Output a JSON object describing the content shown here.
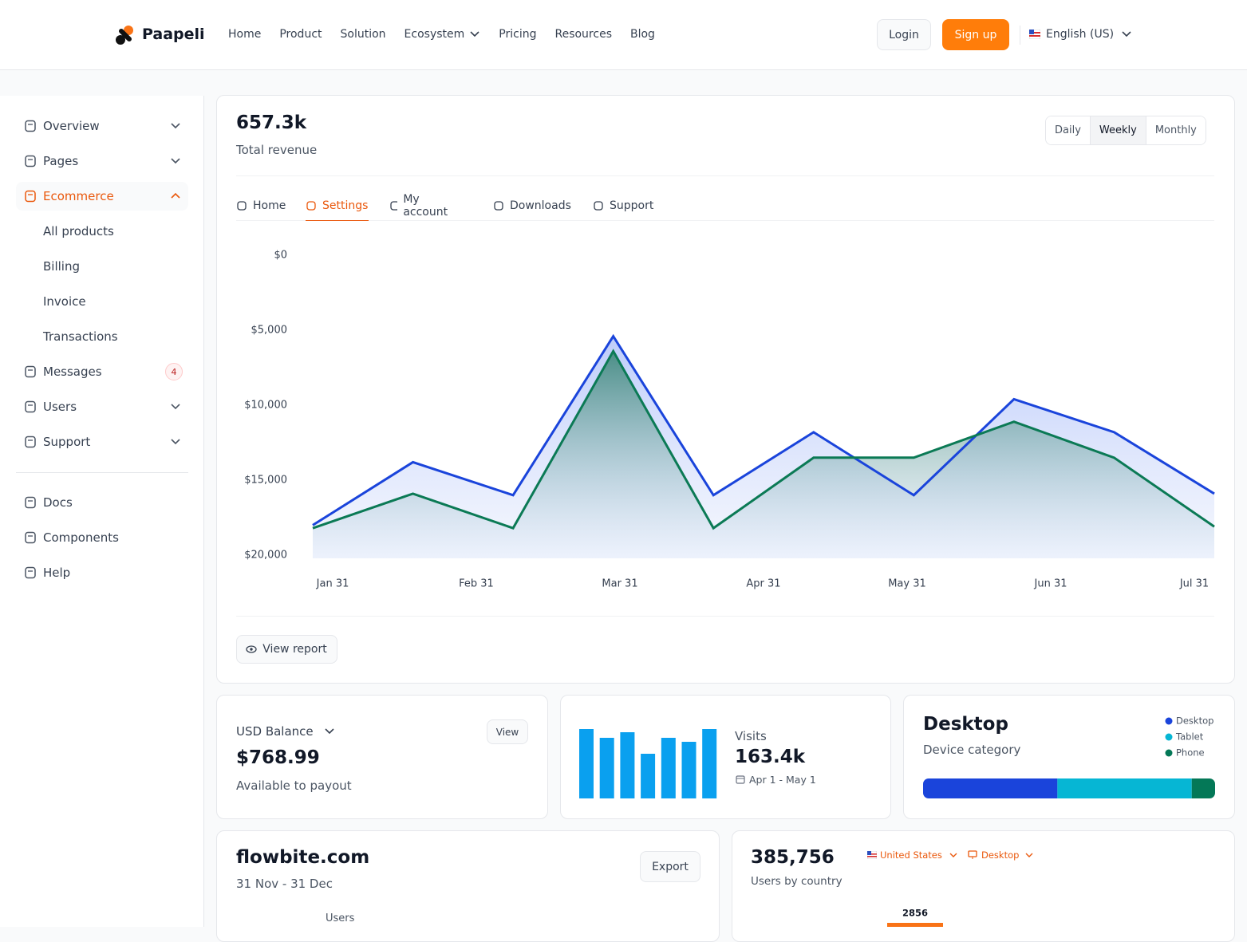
{
  "nav": {
    "brand": "Paapeli",
    "links": [
      "Home",
      "Product",
      "Solution",
      "Ecosystem",
      "Pricing",
      "Resources",
      "Blog"
    ],
    "login": "Login",
    "signup": "Sign up",
    "language": "English (US)"
  },
  "sidebar": {
    "items": [
      {
        "label": "Overview"
      },
      {
        "label": "Pages"
      },
      {
        "label": "Ecommerce",
        "children": [
          "All products",
          "Billing",
          "Invoice",
          "Transactions"
        ]
      },
      {
        "label": "Messages",
        "badge": 4
      },
      {
        "label": "Users"
      },
      {
        "label": "Support"
      }
    ],
    "footer": [
      "Docs",
      "Components",
      "Help"
    ]
  },
  "revenue": {
    "value": "657.3k",
    "label": "Total revenue",
    "periods": [
      "Daily",
      "Weekly",
      "Monthly"
    ],
    "tabs": [
      "Home",
      "Settings",
      "My account",
      "Downloads",
      "Support"
    ],
    "chart": {
      "type": "area",
      "x_labels": [
        "Jan 31",
        "Feb 31",
        "Mar 31",
        "Apr 31",
        "May 31",
        "Jun 31",
        "Jul 31"
      ],
      "ylim": [
        20000,
        0
      ],
      "yticks": [
        {
          "value": 0,
          "label": "$0"
        },
        {
          "value": 5000,
          "label": "$5,000"
        },
        {
          "value": 10000,
          "label": "$10,000"
        },
        {
          "value": 15000,
          "label": "$15,000"
        },
        {
          "value": 20000,
          "label": "$20,000"
        }
      ],
      "series": [
        {
          "color": "#1a44db",
          "values": [
            18000,
            13800,
            16000,
            5400,
            16000,
            11800,
            16000,
            9600,
            11800,
            15900
          ]
        },
        {
          "color": "#0b7a55",
          "values": [
            18200,
            15900,
            18200,
            6400,
            18200,
            13500,
            13500,
            11100,
            13500,
            18100
          ]
        }
      ]
    },
    "button": "View report"
  },
  "balance": {
    "title": "USD Balance",
    "button": "View",
    "amount": "$768.99",
    "caption": "Available to payout"
  },
  "visits": {
    "chart": {
      "type": "bar",
      "values": [
        87,
        76,
        83,
        56,
        76,
        71,
        87
      ],
      "color": "#0aa0ef"
    },
    "title": "Visits",
    "value": "163.4k",
    "range": "Apr 1 - May 1"
  },
  "device": {
    "title": "Desktop",
    "subtitle": "Device category",
    "chart": {
      "type": "stacked-bar",
      "series": [
        {
          "name": "Desktop",
          "color": "#1a44db",
          "values": [
            46
          ]
        },
        {
          "name": "Tablet",
          "color": "#06b6d4",
          "values": [
            46
          ]
        },
        {
          "name": "Phone",
          "color": "#047857",
          "values": [
            8
          ]
        }
      ]
    }
  },
  "site": {
    "title": "flowbite.com",
    "range": "31 Nov - 31 Dec",
    "button": "Export",
    "legend": "Users"
  },
  "country": {
    "value": "385,756",
    "label": "Users by country",
    "country_filter": "United States",
    "device_filter": "Desktop",
    "chart": {
      "type": "bar",
      "values": [
        2856
      ],
      "color": "#f97316"
    }
  }
}
